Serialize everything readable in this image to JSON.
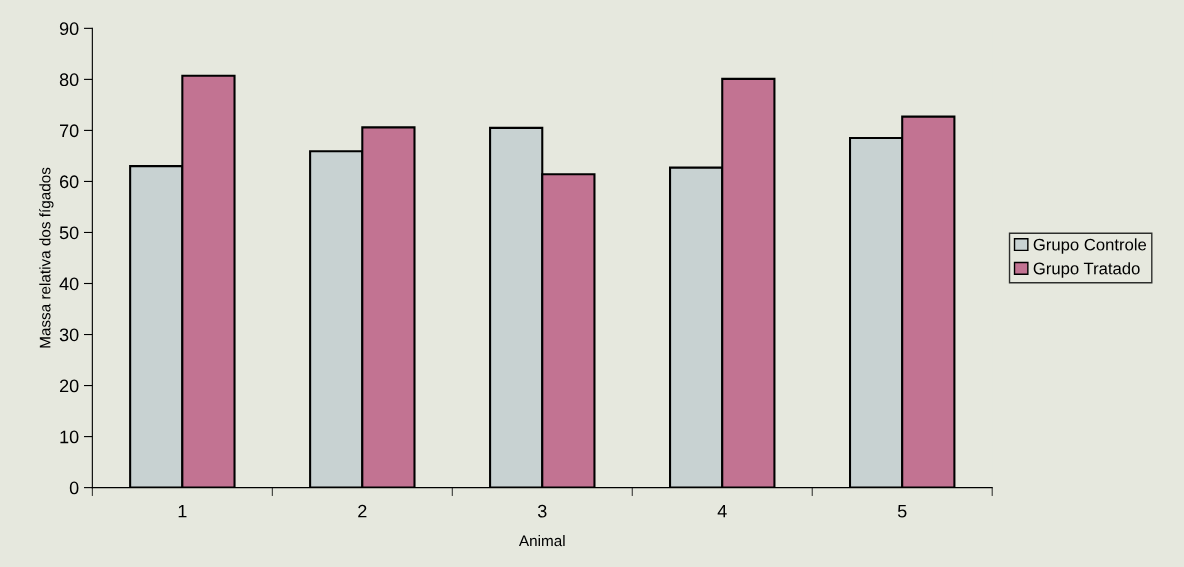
{
  "chart_data": {
    "type": "bar",
    "xlabel": "Animal",
    "ylabel": "Massa relativa dos fígados",
    "categories": [
      "1",
      "2",
      "3",
      "4",
      "5"
    ],
    "series": [
      {
        "name": "Grupo Controle",
        "color": "#c8d2d2",
        "values": [
          63.0,
          65.9,
          70.5,
          62.7,
          68.5
        ]
      },
      {
        "name": "Grupo Tratado",
        "color": "#c27392",
        "values": [
          80.7,
          70.6,
          61.4,
          80.1,
          72.7
        ]
      }
    ],
    "ylim": [
      0,
      90
    ],
    "yticks": [
      0,
      10,
      20,
      30,
      40,
      50,
      60,
      70,
      80,
      90
    ],
    "grid": false,
    "legend": "right"
  }
}
